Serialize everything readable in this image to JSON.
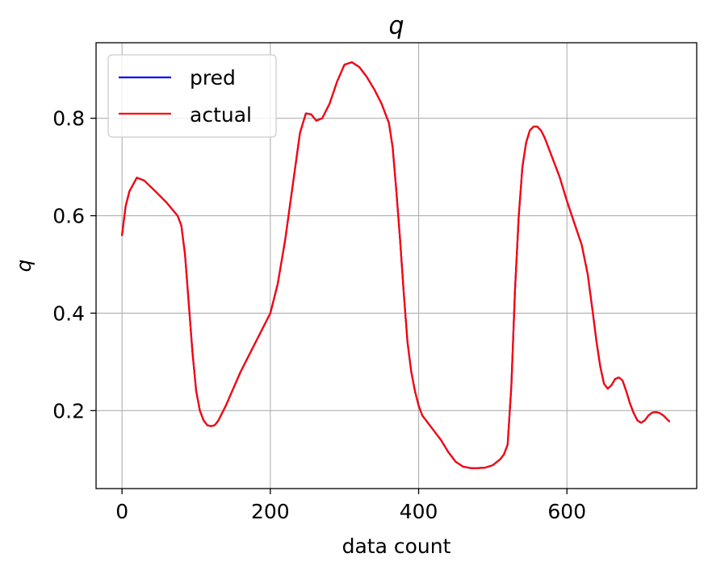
{
  "chart_data": {
    "type": "line",
    "title": "q",
    "xlabel": "data count",
    "ylabel": "q",
    "xlim": [
      -35,
      775
    ],
    "ylim": [
      0.04,
      0.955
    ],
    "xticks": [
      0,
      200,
      400,
      600
    ],
    "xtick_labels": [
      "0",
      "200",
      "400",
      "600"
    ],
    "yticks": [
      0.2,
      0.4,
      0.6,
      0.8
    ],
    "ytick_labels": [
      "0.2",
      "0.4",
      "0.6",
      "0.8"
    ],
    "grid": true,
    "legend_position": "top-left",
    "series": [
      {
        "name": "pred",
        "color": "#0000ff",
        "x": [
          0,
          5,
          10,
          20,
          30,
          45,
          60,
          75,
          80,
          85,
          90,
          95,
          100,
          105,
          110,
          115,
          120,
          125,
          130,
          140,
          150,
          160,
          175,
          190,
          200,
          210,
          220,
          230,
          240,
          248,
          255,
          262,
          270,
          280,
          290,
          300,
          310,
          320,
          330,
          340,
          350,
          360,
          365,
          370,
          375,
          380,
          385,
          390,
          395,
          400,
          405,
          410,
          420,
          430,
          440,
          450,
          460,
          470,
          480,
          490,
          500,
          510,
          515,
          520,
          525,
          530,
          535,
          540,
          545,
          550,
          555,
          560,
          565,
          570,
          580,
          590,
          600,
          610,
          620,
          628,
          635,
          640,
          645,
          650,
          655,
          660,
          665,
          670,
          675,
          680,
          685,
          690,
          695,
          700,
          705,
          710,
          715,
          720,
          725,
          730,
          738
        ],
        "y": [
          0.56,
          0.62,
          0.65,
          0.678,
          0.672,
          0.65,
          0.627,
          0.6,
          0.58,
          0.52,
          0.42,
          0.32,
          0.24,
          0.2,
          0.18,
          0.17,
          0.168,
          0.17,
          0.18,
          0.21,
          0.245,
          0.28,
          0.325,
          0.37,
          0.4,
          0.46,
          0.55,
          0.66,
          0.77,
          0.81,
          0.808,
          0.795,
          0.8,
          0.83,
          0.875,
          0.91,
          0.915,
          0.905,
          0.885,
          0.86,
          0.83,
          0.79,
          0.74,
          0.65,
          0.55,
          0.44,
          0.34,
          0.28,
          0.24,
          0.21,
          0.19,
          0.18,
          0.16,
          0.14,
          0.115,
          0.095,
          0.085,
          0.082,
          0.082,
          0.083,
          0.088,
          0.1,
          0.11,
          0.13,
          0.25,
          0.45,
          0.6,
          0.7,
          0.75,
          0.775,
          0.783,
          0.783,
          0.775,
          0.76,
          0.72,
          0.68,
          0.63,
          0.585,
          0.54,
          0.48,
          0.4,
          0.34,
          0.29,
          0.255,
          0.245,
          0.252,
          0.265,
          0.268,
          0.262,
          0.24,
          0.215,
          0.195,
          0.18,
          0.175,
          0.18,
          0.19,
          0.196,
          0.197,
          0.195,
          0.19,
          0.178
        ]
      },
      {
        "name": "actual",
        "color": "#ff0000",
        "x": [
          0,
          5,
          10,
          20,
          30,
          45,
          60,
          75,
          80,
          85,
          90,
          95,
          100,
          105,
          110,
          115,
          120,
          125,
          130,
          140,
          150,
          160,
          175,
          190,
          200,
          210,
          220,
          230,
          240,
          248,
          255,
          262,
          270,
          280,
          290,
          300,
          310,
          320,
          330,
          340,
          350,
          360,
          365,
          370,
          375,
          380,
          385,
          390,
          395,
          400,
          405,
          410,
          420,
          430,
          440,
          450,
          460,
          470,
          480,
          490,
          500,
          510,
          515,
          520,
          525,
          530,
          535,
          540,
          545,
          550,
          555,
          560,
          565,
          570,
          580,
          590,
          600,
          610,
          620,
          628,
          635,
          640,
          645,
          650,
          655,
          660,
          665,
          670,
          675,
          680,
          685,
          690,
          695,
          700,
          705,
          710,
          715,
          720,
          725,
          730,
          738
        ],
        "y": [
          0.56,
          0.62,
          0.65,
          0.678,
          0.672,
          0.65,
          0.627,
          0.6,
          0.58,
          0.52,
          0.42,
          0.32,
          0.24,
          0.2,
          0.18,
          0.17,
          0.168,
          0.17,
          0.18,
          0.21,
          0.245,
          0.28,
          0.325,
          0.37,
          0.4,
          0.46,
          0.55,
          0.66,
          0.77,
          0.81,
          0.808,
          0.795,
          0.8,
          0.83,
          0.875,
          0.91,
          0.915,
          0.905,
          0.885,
          0.86,
          0.83,
          0.79,
          0.74,
          0.65,
          0.55,
          0.44,
          0.34,
          0.28,
          0.24,
          0.21,
          0.19,
          0.18,
          0.16,
          0.14,
          0.115,
          0.095,
          0.085,
          0.082,
          0.082,
          0.083,
          0.088,
          0.1,
          0.11,
          0.13,
          0.25,
          0.45,
          0.6,
          0.7,
          0.75,
          0.775,
          0.783,
          0.783,
          0.775,
          0.76,
          0.72,
          0.68,
          0.63,
          0.585,
          0.54,
          0.48,
          0.4,
          0.34,
          0.29,
          0.255,
          0.245,
          0.252,
          0.265,
          0.268,
          0.262,
          0.24,
          0.215,
          0.195,
          0.18,
          0.175,
          0.18,
          0.19,
          0.196,
          0.197,
          0.195,
          0.19,
          0.178
        ]
      }
    ]
  }
}
